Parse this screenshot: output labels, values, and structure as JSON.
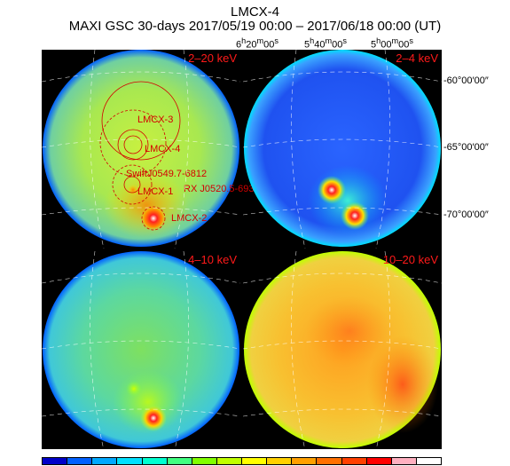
{
  "header": {
    "source": "LMCX-4",
    "period": "MAXI GSC 30-days 2017/05/19 00:00 – 2017/06/18 00:00 (UT)"
  },
  "axes": {
    "ra_ticks": [
      {
        "h": "6",
        "m": "20",
        "s": "00"
      },
      {
        "h": "5",
        "m": "40",
        "s": "00"
      },
      {
        "h": "5",
        "m": "00",
        "s": "00"
      }
    ],
    "dec_ticks": [
      "-60°00′00″",
      "-65°00′00″",
      "-70°00′00″"
    ]
  },
  "panels": [
    {
      "band": "2–20 keV",
      "colormap": "green-yellow",
      "base": "#9de040"
    },
    {
      "band": "2–4 keV",
      "colormap": "blue",
      "base": "#2c66ff"
    },
    {
      "band": "4–10 keV",
      "colormap": "cyan-green",
      "base": "#5ed8a8"
    },
    {
      "band": "10–20 keV",
      "colormap": "orange",
      "base": "#f0a020"
    }
  ],
  "source_labels": [
    "LMCX-3",
    "LMCX-4",
    "SwiftJ0549.7-6812",
    "LMCX-1",
    "RX J0520.5-693",
    "LMCX-2"
  ],
  "colors": {
    "label_red": "#ff1a1a",
    "source_red": "#d40000",
    "colorbar": [
      "#0000c8",
      "#0060ff",
      "#00a8ff",
      "#00e0ff",
      "#00ffd0",
      "#40ff80",
      "#80ff00",
      "#c0ff00",
      "#ffff00",
      "#ffd000",
      "#ffa000",
      "#ff7000",
      "#ff4000",
      "#ff0000",
      "#ffb0c0",
      "#ffffff"
    ]
  }
}
